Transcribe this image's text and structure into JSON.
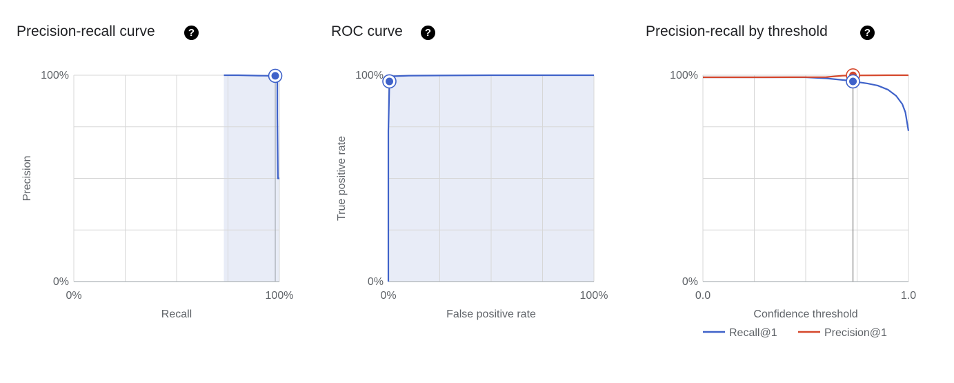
{
  "colors": {
    "recall_series": "#3f62c9",
    "precision_series": "#d5472b",
    "shade": "#e8ecf7",
    "grid": "#d7d7d7",
    "axis_text": "#5f6368"
  },
  "help_icon": {
    "glyph": "?",
    "name": "question-circle-icon"
  },
  "chart_data": [
    {
      "type": "area",
      "title": "Precision-recall curve",
      "xlabel": "Recall",
      "ylabel": "Precision",
      "x_ticks": [
        "0%",
        "100%"
      ],
      "y_ticks": [
        "0%",
        "100%"
      ],
      "xlim": [
        0,
        1
      ],
      "ylim": [
        0,
        1
      ],
      "grid": true,
      "shaded_x_from": 0.73,
      "series": [
        {
          "x": [
            0.73,
            0.8,
            0.9,
            0.98,
            0.99,
            0.99,
            0.993,
            1.0
          ],
          "y": [
            1.0,
            1.0,
            0.998,
            0.997,
            0.997,
            0.8,
            0.5,
            0.5
          ]
        }
      ],
      "selected_point": {
        "x": 0.98,
        "y": 0.997
      }
    },
    {
      "type": "area",
      "title": "ROC curve",
      "xlabel": "False positive rate",
      "ylabel": "True positive rate",
      "x_ticks": [
        "0%",
        "100%"
      ],
      "y_ticks": [
        "0%",
        "100%"
      ],
      "xlim": [
        0,
        1
      ],
      "ylim": [
        0,
        1
      ],
      "grid": true,
      "series": [
        {
          "x": [
            0,
            0,
            0.005,
            0.02,
            0.1,
            0.5,
            1.0
          ],
          "y": [
            0,
            0.73,
            0.96,
            0.995,
            0.998,
            1.0,
            1.0
          ]
        }
      ],
      "selected_point": {
        "x": 0.005,
        "y": 0.97
      }
    },
    {
      "type": "line",
      "title": "Precision-recall by threshold",
      "xlabel": "Confidence threshold",
      "ylabel": "",
      "x_ticks": [
        "0.0",
        "1.0"
      ],
      "y_ticks": [
        "0%",
        "100%"
      ],
      "xlim": [
        0,
        1
      ],
      "ylim": [
        0,
        1
      ],
      "grid": true,
      "legend_position": "bottom",
      "threshold": 0.73,
      "series": [
        {
          "name": "Recall@1",
          "x": [
            0,
            0.3,
            0.5,
            0.6,
            0.7,
            0.73,
            0.8,
            0.85,
            0.9,
            0.94,
            0.97,
            0.985,
            0.995,
            1.0
          ],
          "y": [
            0.99,
            0.99,
            0.99,
            0.985,
            0.975,
            0.97,
            0.96,
            0.95,
            0.93,
            0.9,
            0.86,
            0.82,
            0.76,
            0.73
          ]
        },
        {
          "name": "Precision@1",
          "x": [
            0,
            0.3,
            0.6,
            0.68,
            0.73,
            0.9,
            1.0
          ],
          "y": [
            0.99,
            0.99,
            0.991,
            0.998,
            0.999,
            1.0,
            1.0
          ]
        }
      ],
      "selected_points": [
        {
          "series": "Precision@1",
          "x": 0.73,
          "y": 0.999
        },
        {
          "series": "Recall@1",
          "x": 0.73,
          "y": 0.97
        }
      ]
    }
  ]
}
